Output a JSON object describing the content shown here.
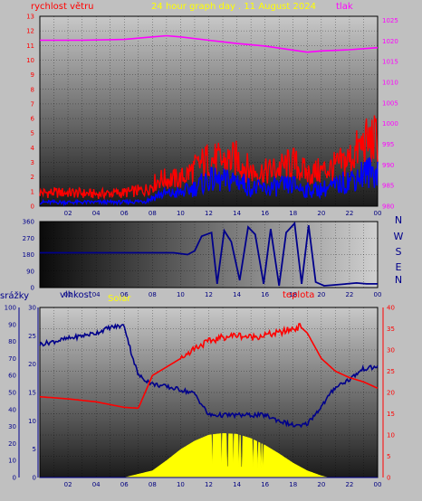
{
  "colors": {
    "background": "#c0c0c0",
    "wind": "#ff0000",
    "gust": "#ff0000",
    "wind_avg": "#0000ff",
    "pressure": "#ff00ff",
    "title": "#ffff00",
    "direction": "#00008b",
    "humidity": "#00008b",
    "temperature": "#ff0000",
    "solar": "#ffff00",
    "rain_axis": "#00008b"
  },
  "header": {
    "wind_label": "rychlost větru",
    "title": "24 hour graph day . 11 August 2024",
    "pressure_label": "tlak"
  },
  "bottom_labels": {
    "rain": "srážky",
    "humidity": "vlhkost",
    "solar": "Solar",
    "temperature": "teplota"
  },
  "direction_letters": [
    "N",
    "W",
    "S",
    "E",
    "N"
  ],
  "chart_data": [
    {
      "type": "line",
      "title": "24 hour graph day . 11 August 2024",
      "x_ticks": [
        "02",
        "04",
        "06",
        "08",
        "10",
        "12",
        "14",
        "16",
        "18",
        "20",
        "22",
        "00"
      ],
      "xlim": [
        0,
        24
      ],
      "y_left_ticks": [
        "0",
        "1",
        "2",
        "3",
        "4",
        "5",
        "6",
        "7",
        "8",
        "9",
        "10",
        "11",
        "12",
        "13"
      ],
      "y_left_label": "rychlost větru",
      "ylim_left": [
        0,
        13
      ],
      "y_right_ticks": [
        "980",
        "985",
        "990",
        "995",
        "1000",
        "1005",
        "1010",
        "1015",
        "1020",
        "1025"
      ],
      "y_right_label": "tlak",
      "ylim_right": [
        980,
        1026
      ],
      "grid": true,
      "series": [
        {
          "name": "tlak",
          "axis": "right",
          "x": [
            0,
            3,
            6,
            8,
            9,
            10,
            12,
            14,
            16,
            18,
            19,
            20,
            22,
            24
          ],
          "y": [
            1020.2,
            1020.2,
            1020.4,
            1021.0,
            1021.3,
            1021.0,
            1020.2,
            1019.4,
            1018.8,
            1017.8,
            1017.3,
            1017.6,
            1017.9,
            1018.4
          ]
        },
        {
          "axis": "left",
          "x": [
            0,
            2,
            4,
            6,
            7.5,
            8.5,
            10,
            11,
            12,
            13,
            14,
            15,
            16,
            17,
            18,
            19,
            20,
            21,
            22,
            23,
            24
          ],
          "y": [
            1.0,
            1.0,
            0.9,
            1.0,
            1.2,
            2.0,
            2.0,
            2.8,
            3.5,
            3.3,
            3.5,
            2.6,
            2.5,
            2.8,
            3.2,
            2.4,
            2.6,
            2.9,
            3.5,
            4.6,
            5.0
          ]
        },
        {
          "axis": "left",
          "x": [
            0,
            2,
            4,
            6,
            7.5,
            8.5,
            10,
            11,
            12,
            13,
            14,
            15,
            16,
            17,
            18,
            19,
            20,
            21,
            22,
            23,
            24
          ],
          "y": [
            0.3,
            0.3,
            0.3,
            0.3,
            0.4,
            0.9,
            1.0,
            1.4,
            2.0,
            1.9,
            2.0,
            1.4,
            1.3,
            1.5,
            1.6,
            1.2,
            1.3,
            1.5,
            2.0,
            2.5,
            2.7
          ]
        }
      ]
    },
    {
      "type": "scatter",
      "x_ticks": [
        "02",
        "04",
        "06",
        "08",
        "10",
        "12",
        "14",
        "16",
        "18",
        "20",
        "22",
        "00"
      ],
      "xlim": [
        0,
        24
      ],
      "y_ticks": [
        "0",
        "90",
        "180",
        "270",
        "360"
      ],
      "ylim": [
        0,
        360
      ],
      "grid": true,
      "series": [
        {
          "axis": "left",
          "x": [
            0,
            2,
            4,
            6,
            8,
            9.5,
            10.5,
            11,
            11.5,
            12.2,
            12.6,
            13.1,
            13.6,
            14.2,
            14.8,
            15.3,
            15.9,
            16.4,
            17.0,
            17.5,
            18.1,
            18.6,
            19.1,
            19.6,
            20.2,
            21.0,
            21.8,
            22.5,
            23.2,
            24
          ],
          "y": [
            190,
            190,
            190,
            190,
            190,
            190,
            180,
            200,
            280,
            300,
            20,
            310,
            250,
            40,
            330,
            290,
            20,
            320,
            10,
            300,
            350,
            20,
            340,
            30,
            10,
            15,
            20,
            25,
            20,
            20
          ]
        }
      ]
    },
    {
      "type": "area",
      "x_ticks": [
        "02",
        "04",
        "06",
        "08",
        "10",
        "12",
        "14",
        "16",
        "18",
        "20",
        "22",
        "00"
      ],
      "xlim": [
        0,
        24
      ],
      "rain_ticks": [
        "0",
        "10",
        "20",
        "30",
        "40",
        "50",
        "60",
        "70",
        "80",
        "90",
        "100"
      ],
      "ylim_rain": [
        0,
        100
      ],
      "humidity_ticks": [
        "0",
        "5",
        "10",
        "15",
        "20",
        "25",
        "30"
      ],
      "ylim_humidity": [
        0,
        30
      ],
      "temperature_ticks": [
        "0",
        "5",
        "10",
        "15",
        "20",
        "25",
        "30",
        "35",
        "40"
      ],
      "ylim_temperature": [
        0,
        40
      ],
      "grid": true,
      "series": [
        {
          "name": "vlhkost",
          "axis": "humidity",
          "x": [
            0,
            2,
            4,
            5,
            6,
            6.5,
            7,
            8,
            10,
            11,
            12,
            14,
            16,
            17,
            18,
            18.5,
            19,
            20,
            21,
            22,
            23,
            24
          ],
          "y": [
            23.5,
            24.5,
            25.5,
            26.5,
            26.8,
            22,
            18,
            16.5,
            15.5,
            14.8,
            11,
            11,
            11,
            10,
            9.2,
            9.0,
            9.5,
            12.5,
            16,
            17.3,
            19.2,
            19.5
          ]
        },
        {
          "name": "teplota",
          "axis": "temperature",
          "x": [
            0,
            2,
            4,
            6,
            7,
            8,
            9,
            10,
            11,
            12,
            13,
            14,
            15,
            16,
            17,
            18,
            18.5,
            19,
            20,
            21,
            22,
            23,
            24
          ],
          "y": [
            19,
            18.5,
            17.8,
            16.5,
            16.3,
            24,
            26,
            28,
            30.5,
            32,
            33,
            33.5,
            33,
            33.5,
            34,
            35,
            35.5,
            34,
            28,
            25,
            23.5,
            22.5,
            21
          ]
        },
        {
          "name": "Solar",
          "axis": "rain",
          "x": [
            6,
            8,
            9,
            10,
            11,
            12,
            13,
            14,
            15,
            16,
            17,
            18,
            19,
            20,
            20.5
          ],
          "y": [
            0,
            4,
            10,
            16.5,
            21.5,
            25,
            26,
            25.5,
            23,
            19,
            14,
            8.5,
            4,
            1,
            0
          ]
        },
        {
          "name": "srážky",
          "axis": "rain",
          "x": [
            0,
            24
          ],
          "y": [
            0,
            0
          ]
        }
      ]
    }
  ]
}
